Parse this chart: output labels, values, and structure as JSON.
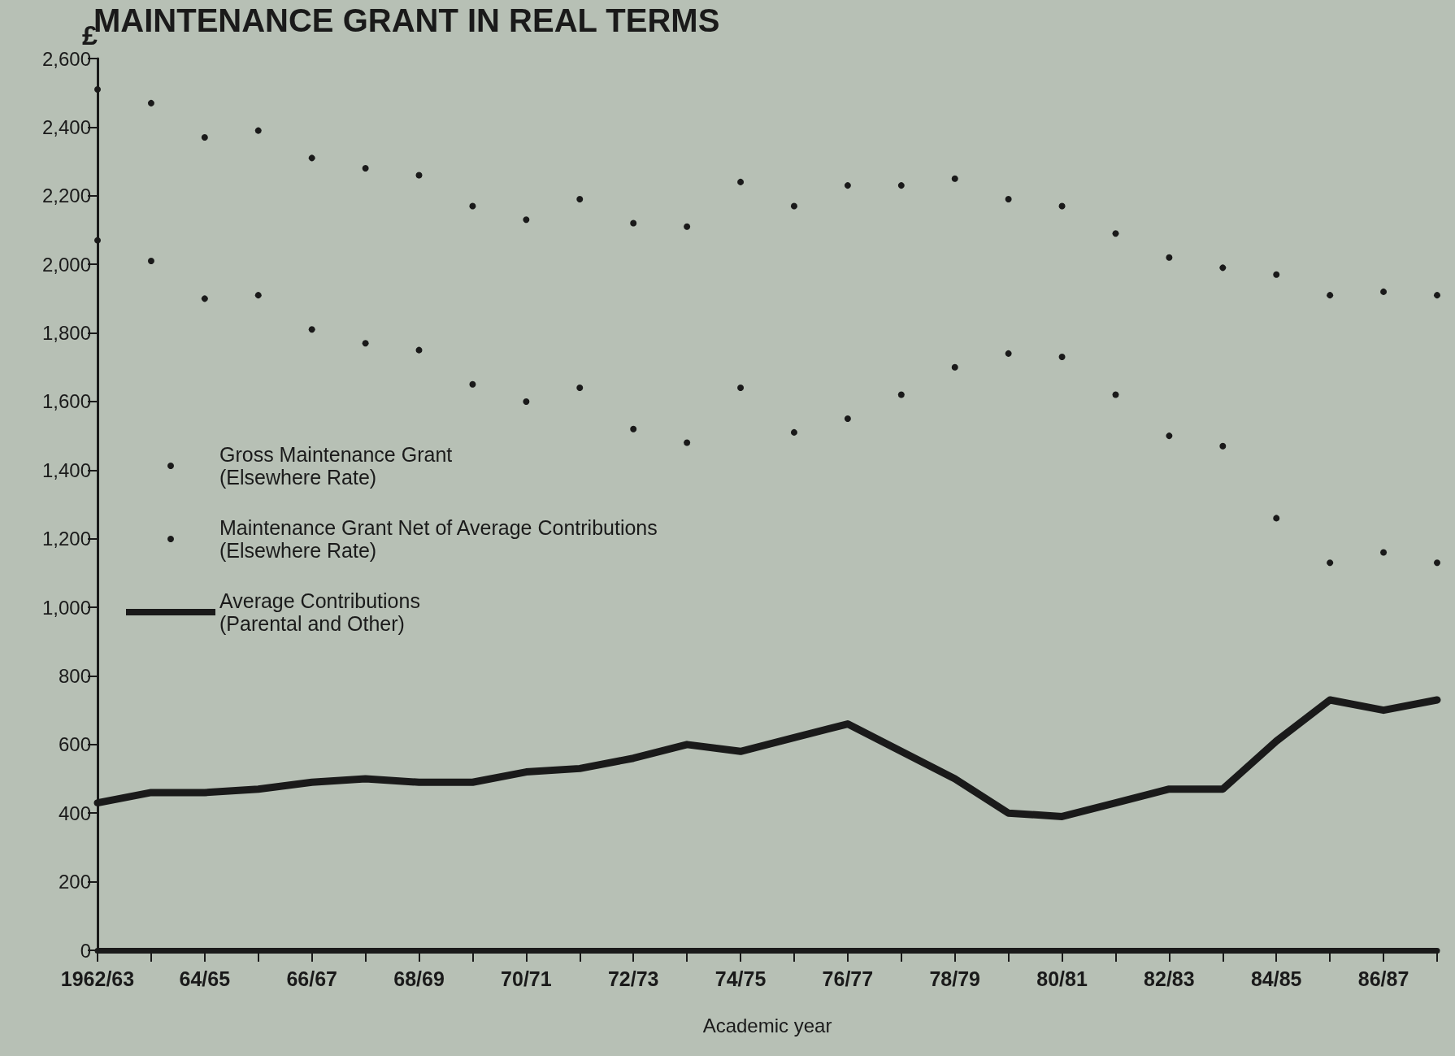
{
  "chart_data": {
    "type": "line",
    "title": "MAINTENANCE GRANT IN REAL TERMS",
    "ylabel": "£",
    "xlabel": "Academic year",
    "categories": [
      "1962/63",
      null,
      "64/65",
      null,
      "66/67",
      null,
      "68/69",
      null,
      "70/71",
      null,
      "72/73",
      null,
      "74/75",
      null,
      "76/77",
      null,
      "78/79",
      null,
      "80/81",
      null,
      "82/83",
      null,
      "84/85",
      null,
      "86/87",
      null
    ],
    "series": [
      {
        "name": "Gross Maintenance Grant\n(Elsewhere Rate)",
        "type": "scatter",
        "marker": "circle",
        "color": "#1a1a1a",
        "values": [
          2510,
          2470,
          2370,
          2390,
          2310,
          2280,
          2260,
          2170,
          2130,
          2190,
          2120,
          2110,
          2240,
          2170,
          2230,
          2230,
          2250,
          2190,
          2170,
          2090,
          2020,
          1990,
          1970,
          1910,
          1920,
          1910
        ]
      },
      {
        "name": "Maintenance Grant Net of Average Contributions\n(Elsewhere Rate)",
        "type": "scatter",
        "marker": "circle",
        "color": "#1a1a1a",
        "values": [
          2070,
          2010,
          1900,
          1910,
          1810,
          1770,
          1750,
          1650,
          1600,
          1640,
          1520,
          1480,
          1640,
          1510,
          1550,
          1620,
          1700,
          1740,
          1730,
          1620,
          1500,
          1470,
          1260,
          1130,
          1160,
          1130
        ]
      },
      {
        "name": "Average Contributions\n(Parental and Other)",
        "type": "line",
        "marker": "none",
        "color": "#1a1a1a",
        "values": [
          430,
          460,
          460,
          470,
          490,
          500,
          490,
          490,
          520,
          530,
          560,
          600,
          580,
          620,
          660,
          580,
          500,
          400,
          390,
          430,
          470,
          470,
          610,
          730,
          700,
          730
        ]
      }
    ],
    "ylim": [
      0,
      2600
    ],
    "yticks": [
      0,
      200,
      400,
      600,
      800,
      {
        "value": 1000,
        "label": "1,000"
      },
      {
        "value": 1200,
        "label": "1,200"
      },
      {
        "value": 1400,
        "label": "1,400"
      },
      {
        "value": 1600,
        "label": "1,600"
      },
      {
        "value": 1800,
        "label": "1,800"
      },
      {
        "value": 2000,
        "label": "2,000"
      },
      {
        "value": 2200,
        "label": "2,200"
      },
      {
        "value": 2400,
        "label": "2,400"
      },
      {
        "value": 2600,
        "label": "2,600"
      }
    ],
    "grid": false,
    "legend": "left",
    "line_style": "solid"
  }
}
